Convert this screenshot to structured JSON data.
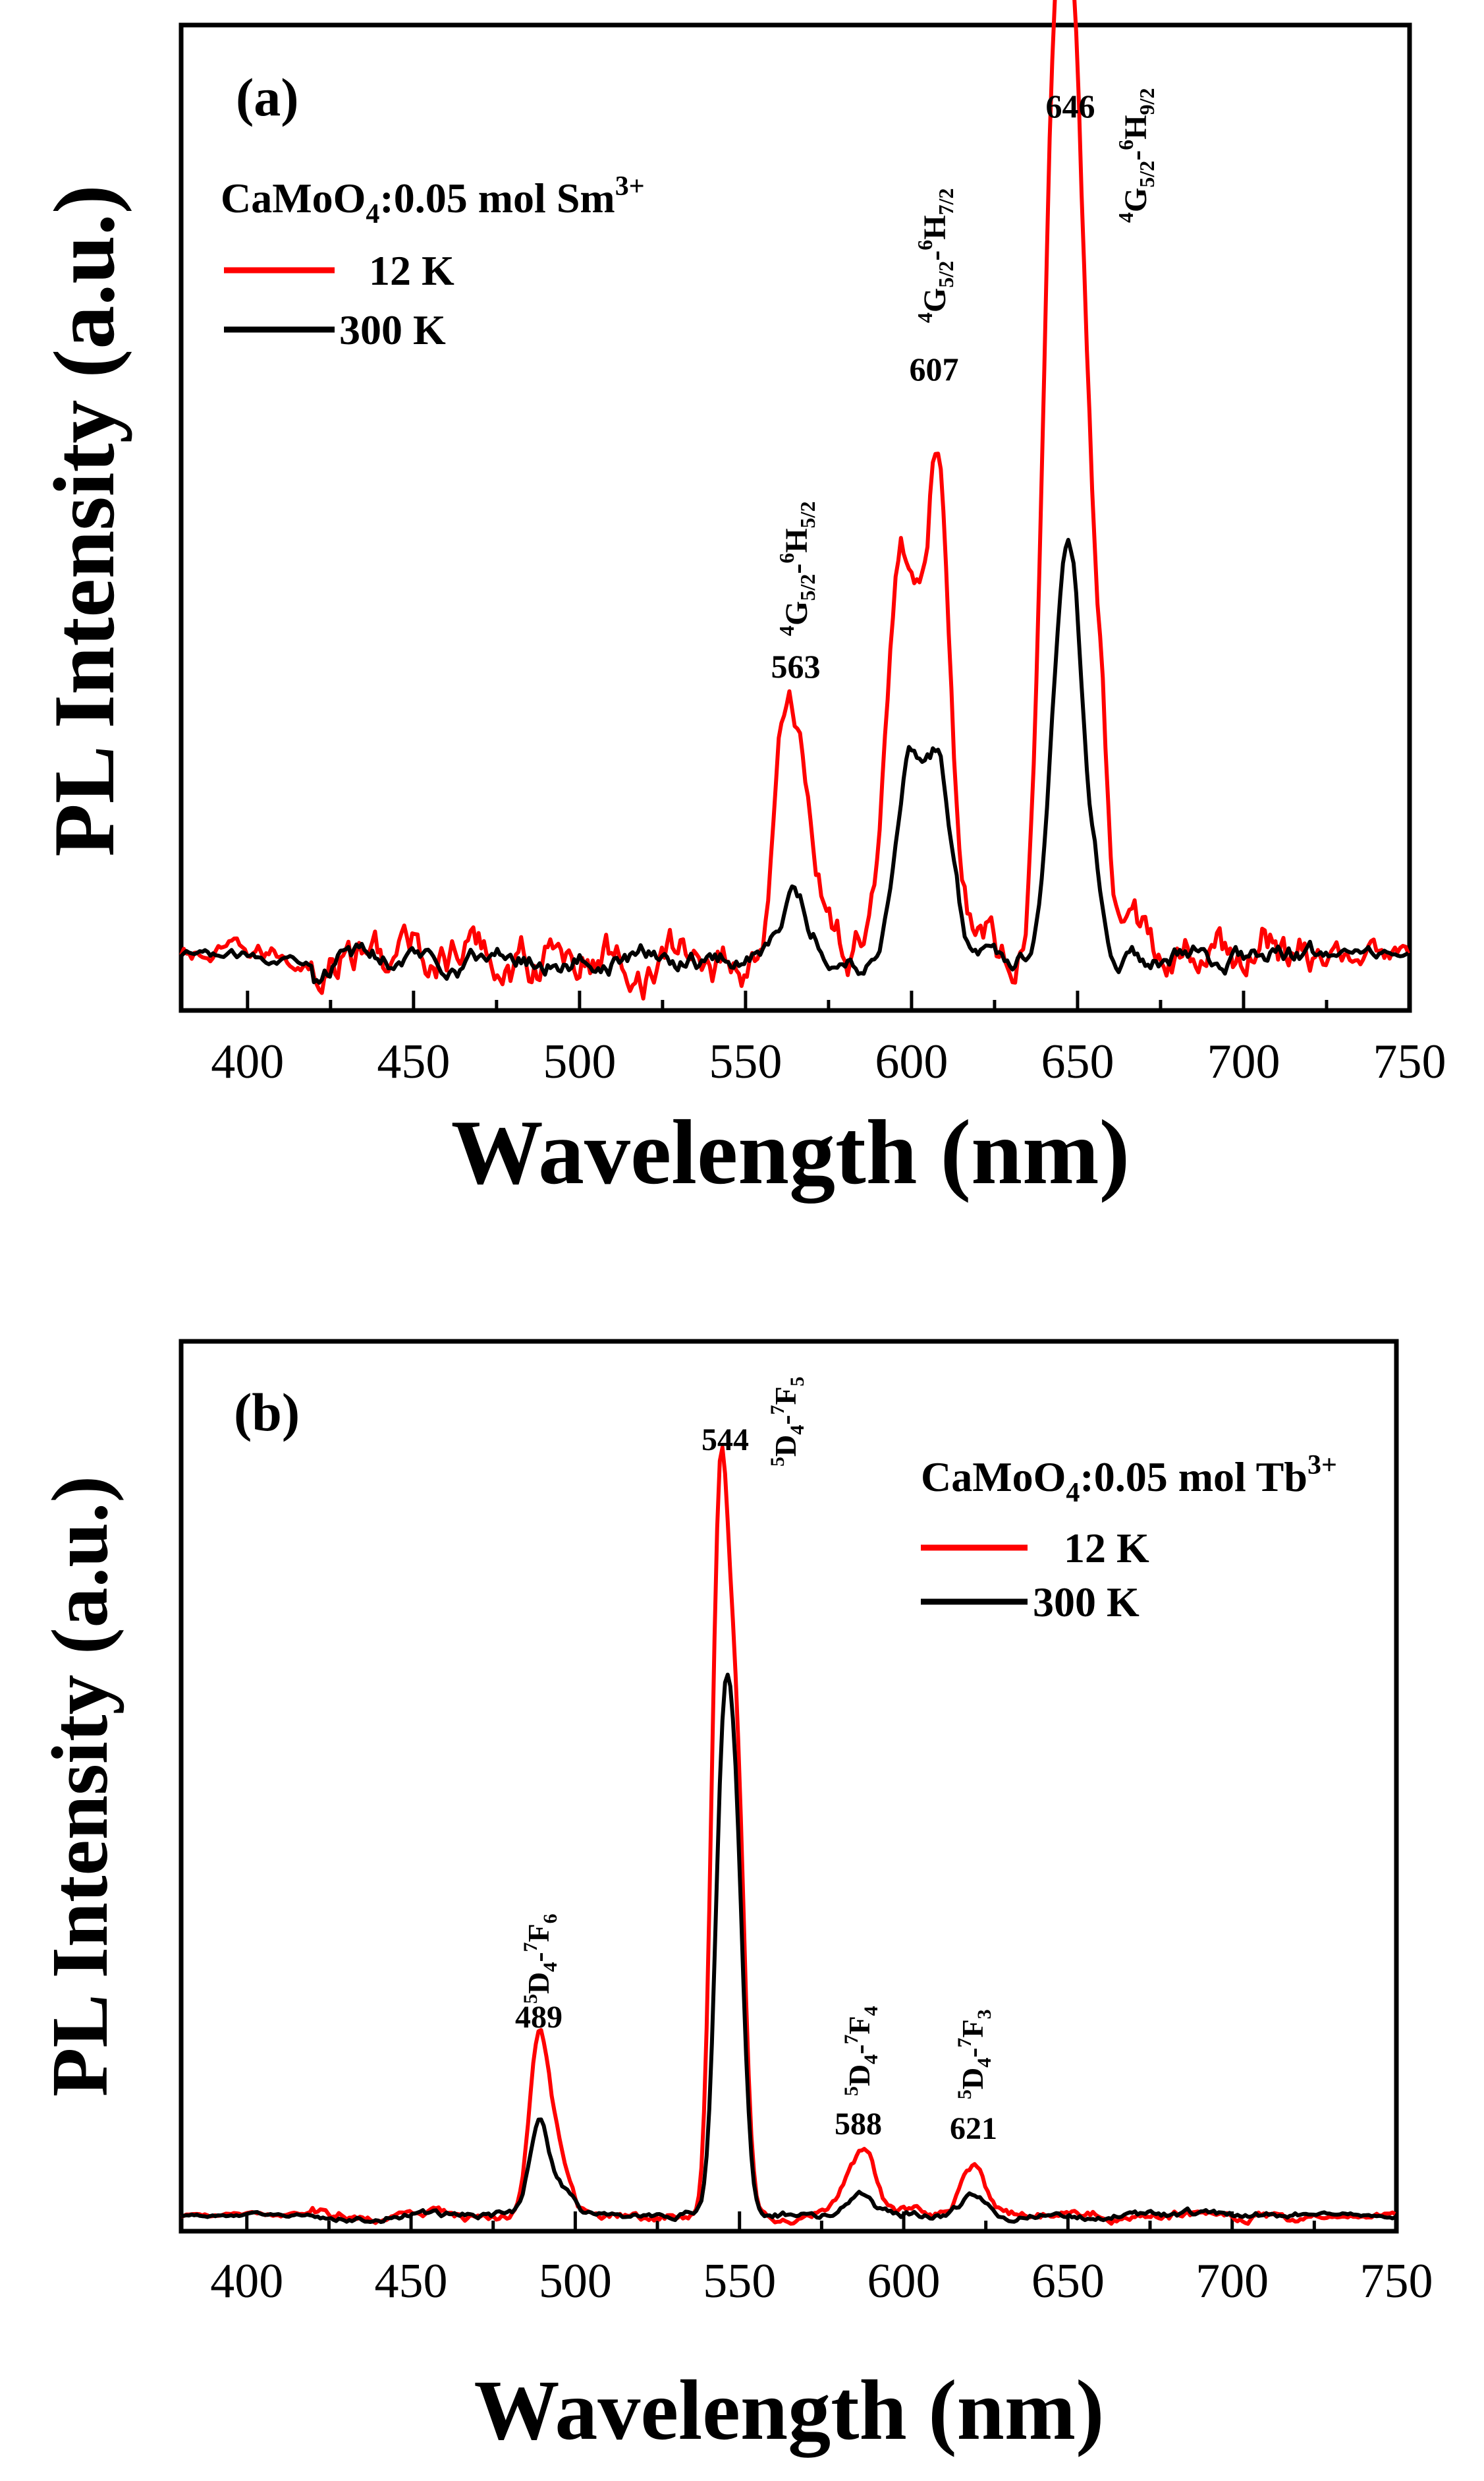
{
  "chart_data": [
    {
      "type": "line",
      "panel_label": "(a)",
      "xlabel": "Wavelength (nm)",
      "ylabel": "PL Intensity (a.u.)",
      "xlim": [
        380,
        750
      ],
      "ylim": [
        -0.06,
        1.05
      ],
      "xticks": [
        "400",
        "450",
        "500",
        "550",
        "600",
        "650",
        "700",
        "750"
      ],
      "legend_title_parts": {
        "base": "CaMoO",
        "sub": "4",
        "mid": ":0.05 mol Sm",
        "sup": "3+"
      },
      "series": [
        {
          "name": "12 K",
          "color": "#ff0000",
          "peaks": [
            [
              563,
              0.27,
              4
            ],
            [
              570,
              0.09,
              4
            ],
            [
              590,
              0.06,
              3
            ],
            [
              597,
              0.46,
              4
            ],
            [
              608,
              0.56,
              4
            ],
            [
              621,
              0.04,
              4
            ],
            [
              638,
              0.03,
              3
            ],
            [
              642,
              0.63,
              3.5
            ],
            [
              647,
              0.91,
              3.5
            ],
            [
              652,
              0.42,
              3
            ],
            [
              657,
              0.22,
              2.5
            ],
            [
              707,
              0.02,
              3
            ]
          ],
          "noise": 0.018
        },
        {
          "name": "300 K",
          "color": "#000000",
          "peaks": [
            [
              564,
              0.07,
              5
            ],
            [
              599,
              0.22,
              4
            ],
            [
              608,
              0.21,
              4
            ],
            [
              645,
              0.3,
              4
            ],
            [
              649,
              0.26,
              3.5
            ],
            [
              656,
              0.06,
              3
            ]
          ],
          "noise": 0.008
        }
      ],
      "annotations": [
        {
          "value": "563",
          "transition": {
            "a": "4",
            "b": "G",
            "c": "5/2",
            "d": "-",
            "e": "6",
            "f": "H",
            "g": "5/2"
          }
        },
        {
          "value": "607",
          "transition": {
            "a": "4",
            "b": "G",
            "c": "5/2",
            "d": "-",
            "e": "6",
            "f": "H",
            "g": "7/2"
          }
        },
        {
          "value": "646",
          "transition": {
            "a": "4",
            "b": "G",
            "c": "5/2",
            "d": "-",
            "e": "6",
            "f": "H",
            "g": "9/2"
          }
        }
      ]
    },
    {
      "type": "line",
      "panel_label": "(b)",
      "xlabel": "Wavelength (nm)",
      "ylabel": "PL Intensity (a.u.)",
      "xlim": [
        380,
        750
      ],
      "ylim": [
        -0.02,
        1.1
      ],
      "xticks": [
        "400",
        "450",
        "500",
        "550",
        "600",
        "650",
        "700",
        "750"
      ],
      "legend_title_parts": {
        "base": "CaMoO",
        "sub": "4",
        "mid": ":0.05 mol Tb",
        "sup": "3+"
      },
      "series": [
        {
          "name": "12 K",
          "color": "#ff0000",
          "peaks": [
            [
              489,
              0.22,
              3
            ],
            [
              495,
              0.07,
              3
            ],
            [
              544,
              0.88,
              2.5
            ],
            [
              549,
              0.55,
              2.5
            ],
            [
              584,
              0.04,
              4
            ],
            [
              589,
              0.06,
              3
            ],
            [
              621,
              0.06,
              3.5
            ]
          ],
          "noise": 0.004
        },
        {
          "name": "300 K",
          "color": "#000000",
          "peaks": [
            [
              489,
              0.12,
              3
            ],
            [
              496,
              0.03,
              3
            ],
            [
              545,
              0.52,
              2.5
            ],
            [
              549,
              0.4,
              2.5
            ],
            [
              586,
              0.03,
              4
            ],
            [
              621,
              0.025,
              3.5
            ]
          ],
          "noise": 0.003
        }
      ],
      "annotations": [
        {
          "value": "489",
          "transition": {
            "a": "5",
            "b": "D",
            "c": "4",
            "d": "-",
            "e": "7",
            "f": "F",
            "g": "6"
          }
        },
        {
          "value": "544",
          "transition": {
            "a": "5",
            "b": "D",
            "c": "4",
            "d": "-",
            "e": "7",
            "f": "F",
            "g": "5"
          }
        },
        {
          "value": "588",
          "transition": {
            "a": "5",
            "b": "D",
            "c": "4",
            "d": "-",
            "e": "7",
            "f": "F",
            "g": "4"
          }
        },
        {
          "value": "621",
          "transition": {
            "a": "5",
            "b": "D",
            "c": "4",
            "d": "-",
            "e": "7",
            "f": "F",
            "g": "3"
          }
        }
      ]
    }
  ]
}
